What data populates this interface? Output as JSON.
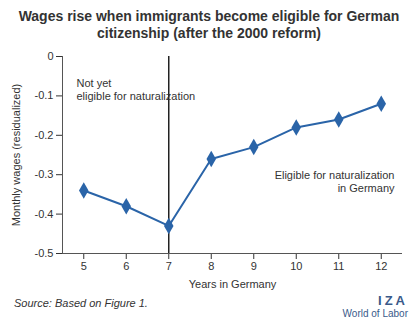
{
  "chart_data": {
    "type": "line",
    "title": "Wages rise when immigrants become eligible for German citizenship (after the 2000 reform)",
    "x_label": "Years in Germany",
    "y_label": "Monthly wages (residualized)",
    "x": [
      5,
      6,
      7,
      8,
      9,
      10,
      11,
      12
    ],
    "values": [
      -0.34,
      -0.38,
      -0.43,
      -0.26,
      -0.23,
      -0.18,
      -0.16,
      -0.12
    ],
    "color": "#2a64a8",
    "marker": "diamond",
    "xlim": [
      4.5,
      12.5
    ],
    "xticks": [
      5,
      6,
      7,
      8,
      9,
      10,
      11,
      12
    ],
    "ylim": [
      -0.5,
      0
    ],
    "yticks": [
      -0.5,
      -0.4,
      -0.3,
      -0.2,
      -0.1,
      0
    ],
    "grid": false,
    "vline_x": 7,
    "annotations": [
      "Not yet\neligible for naturalization",
      "Eligible for naturalization\nin Germany"
    ],
    "source": "Source: Based on Figure 1.",
    "brand": [
      "IZA",
      "World of Labor"
    ]
  }
}
